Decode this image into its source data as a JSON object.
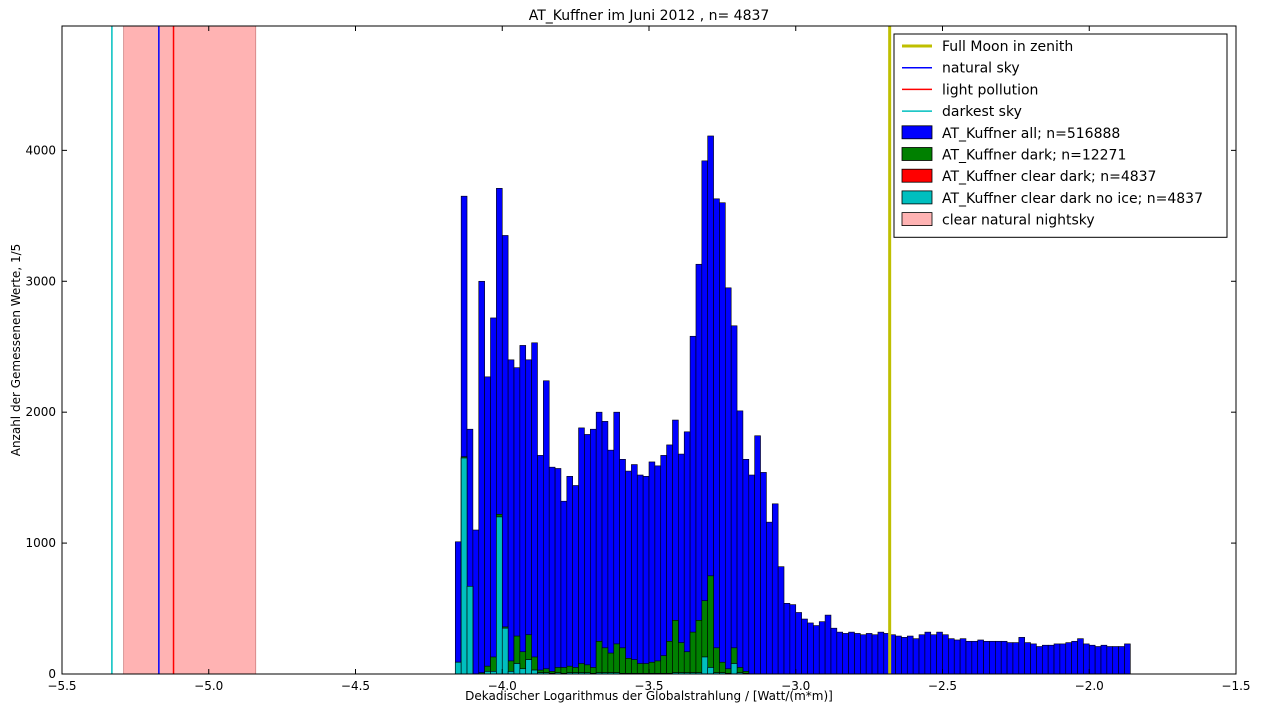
{
  "chart_data": {
    "type": "bar",
    "title": "AT_Kuffner im Juni 2012 , n= 4837",
    "xlabel": "Dekadischer Logarithmus der Globalstrahlung / [Watt/(m*m)]",
    "ylabel": "Anzahl der Gemessenen Werte, 1/5",
    "xlim": [
      -5.5,
      -1.5
    ],
    "ylim": [
      0,
      4950
    ],
    "xticks": [
      -5.5,
      -5.0,
      -4.5,
      -4.0,
      -3.5,
      -3.0,
      -2.5,
      -2.0,
      -1.5
    ],
    "xtick_labels": [
      "−5.5",
      "−5.0",
      "−4.5",
      "−4.0",
      "−3.5",
      "−3.0",
      "−2.5",
      "−2.0",
      "−1.5"
    ],
    "yticks": [
      0,
      1000,
      2000,
      3000,
      4000
    ],
    "ytick_labels": [
      "0",
      "1000",
      "2000",
      "3000",
      "4000"
    ],
    "grid": false,
    "legend_position": "top-right",
    "bin_width": 0.02,
    "x_start": -4.16,
    "series": [
      {
        "name": "AT_Kuffner all; n=516888",
        "color": "#0000ff",
        "values": [
          1010,
          3650,
          1870,
          1100,
          3000,
          2270,
          2720,
          3710,
          3350,
          2400,
          2340,
          2510,
          2400,
          2530,
          1670,
          2240,
          1580,
          1570,
          1320,
          1510,
          1440,
          1880,
          1830,
          1870,
          2000,
          1930,
          1710,
          2000,
          1640,
          1550,
          1600,
          1520,
          1510,
          1620,
          1590,
          1670,
          1750,
          1940,
          1680,
          1850,
          2580,
          3130,
          3920,
          4110,
          3630,
          3600,
          2950,
          2660,
          2010,
          1640,
          1520,
          1820,
          1540,
          1160,
          1300,
          820,
          540,
          530,
          470,
          420,
          390,
          370,
          400,
          450,
          350,
          320,
          310,
          320,
          310,
          300,
          310,
          300,
          320,
          310,
          300,
          290,
          280,
          290,
          270,
          300,
          320,
          300,
          320,
          300,
          270,
          260,
          270,
          250,
          250,
          260,
          250,
          250,
          250,
          250,
          240,
          240,
          280,
          240,
          230,
          210,
          220,
          220,
          230,
          230,
          240,
          250,
          270,
          230,
          220,
          210,
          220,
          210,
          210,
          210,
          230
        ]
      },
      {
        "name": "AT_Kuffner dark; n=12271",
        "color": "#008000",
        "values": [
          90,
          1660,
          670,
          0,
          10,
          60,
          130,
          1220,
          360,
          100,
          290,
          170,
          300,
          130,
          30,
          40,
          20,
          50,
          50,
          60,
          50,
          80,
          70,
          50,
          250,
          200,
          160,
          230,
          200,
          120,
          110,
          80,
          80,
          90,
          100,
          140,
          250,
          410,
          240,
          170,
          320,
          410,
          560,
          750,
          200,
          90,
          40,
          200,
          50,
          20,
          0
        ]
      },
      {
        "name": "AT_Kuffner clear dark; n=4837",
        "color": "#ff0000",
        "values": [
          90,
          1650,
          670,
          0,
          0,
          20,
          20,
          1200,
          350,
          20,
          80,
          40,
          110,
          30,
          10,
          10,
          5,
          10,
          5,
          10,
          10,
          10,
          10,
          5,
          10,
          10,
          10,
          10,
          5,
          5,
          5,
          5,
          5,
          5,
          5,
          5,
          5,
          10,
          10,
          10,
          10,
          10,
          130,
          50,
          10,
          10,
          5,
          80,
          10,
          5,
          0
        ]
      },
      {
        "name": "AT_Kuffner clear dark no ice; n=4837",
        "color": "#00bfbf",
        "values": [
          90,
          1650,
          670,
          0,
          0,
          20,
          20,
          1200,
          350,
          20,
          80,
          40,
          110,
          30,
          10,
          10,
          5,
          10,
          5,
          10,
          10,
          10,
          10,
          5,
          10,
          10,
          10,
          10,
          5,
          5,
          5,
          5,
          5,
          5,
          5,
          5,
          5,
          10,
          10,
          10,
          10,
          10,
          130,
          50,
          10,
          10,
          5,
          80,
          10,
          5,
          0
        ]
      }
    ],
    "vlines": [
      {
        "name": "Full Moon in zenith",
        "x": -2.68,
        "color": "#bfbf00",
        "width": 3
      },
      {
        "name": "natural sky",
        "x": -5.17,
        "color": "#0000ff",
        "width": 1.5
      },
      {
        "name": "light pollution",
        "x": -5.12,
        "color": "#ff0000",
        "width": 1.5
      },
      {
        "name": "darkest sky",
        "x": -5.33,
        "color": "#00bfbf",
        "width": 1.5
      }
    ],
    "spans": [
      {
        "name": "clear natural nightsky",
        "x0": -5.29,
        "x1": -4.84,
        "color": "#ffb3b3"
      }
    ]
  }
}
